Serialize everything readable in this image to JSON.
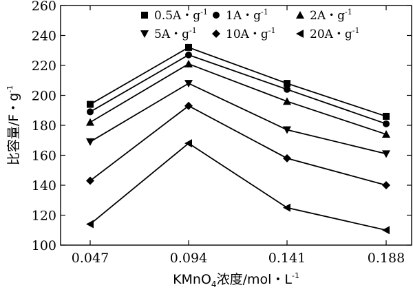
{
  "chart_data": {
    "type": "line",
    "x": [
      "0.047",
      "0.094",
      "0.141",
      "0.188"
    ],
    "ylim": [
      100,
      260
    ],
    "yticks": [
      "100",
      "120",
      "140",
      "160",
      "180",
      "200",
      "220",
      "240",
      "260"
    ],
    "ylabel": "比容量/F・g",
    "ylabel_sup": "-1",
    "xlabel": {
      "main": "KMnO",
      "sub": "4",
      "rest": "浓度/mol・L",
      "sup": "-1"
    },
    "grid": false,
    "legend_position": "top-right",
    "series": [
      {
        "name": "0.5A・g",
        "sup": "-1",
        "marker": "square",
        "values": [
          194,
          232,
          208,
          186
        ]
      },
      {
        "name": "1A・g",
        "sup": "-1",
        "marker": "circle",
        "values": [
          189,
          227,
          204,
          181
        ]
      },
      {
        "name": "2A・g",
        "sup": "-1",
        "marker": "triangle-up",
        "values": [
          182,
          221,
          196,
          174
        ]
      },
      {
        "name": "5A・g",
        "sup": "-1",
        "marker": "triangle-down",
        "values": [
          169,
          208,
          177,
          161
        ]
      },
      {
        "name": "10A・g",
        "sup": "-1",
        "marker": "diamond",
        "values": [
          143,
          193,
          158,
          140
        ]
      },
      {
        "name": "20A・g",
        "sup": "-1",
        "marker": "triangle-left",
        "values": [
          114,
          168,
          125,
          110
        ]
      }
    ]
  }
}
